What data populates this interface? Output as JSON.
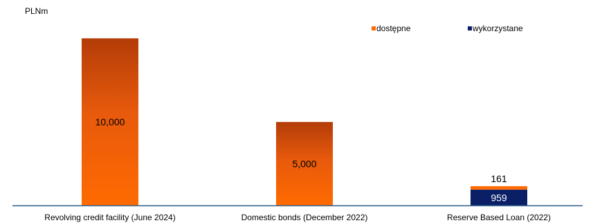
{
  "chart_data": {
    "type": "bar",
    "stacked": true,
    "unit_label": "PLNm",
    "categories": [
      "Revolving credit facility (June 2024)",
      "Domestic bonds (December 2022)",
      "Reserve Based Loan (2022)"
    ],
    "series": [
      {
        "name": "wykorzystane",
        "color": "#0a1f66",
        "values": [
          0,
          0,
          959
        ]
      },
      {
        "name": "dostępne",
        "color": "#ff6a00",
        "values": [
          10000,
          5000,
          161
        ]
      }
    ],
    "data_labels": [
      "10,000",
      "5,000",
      "959",
      "161"
    ],
    "ylim": [
      0,
      10800
    ],
    "grid": false,
    "legend_position": "top-right"
  }
}
